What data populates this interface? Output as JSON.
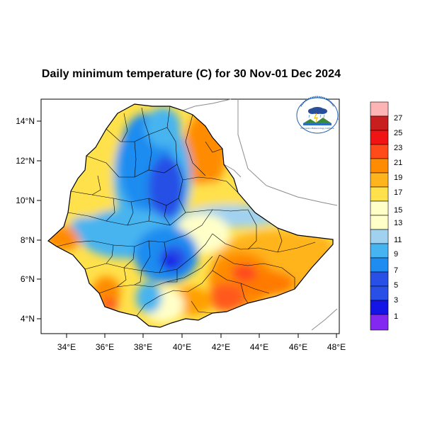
{
  "map": {
    "title": "Daily minimum temperature (C) for 30 Nov-01 Dec 2024",
    "x_ticks": [
      "34°E",
      "36°E",
      "38°E",
      "40°E",
      "42°E",
      "44°E",
      "46°E",
      "48°E"
    ],
    "y_ticks": [
      "14°N",
      "12°N",
      "10°N",
      "8°N",
      "6°N",
      "4°N"
    ],
    "region": "Ethiopia",
    "logo_caption": "Ethiopian Meteorology Institute"
  },
  "colorbar": {
    "labels": [
      "27",
      "25",
      "23",
      "21",
      "19",
      "17",
      "15",
      "13",
      "11",
      "9",
      "7",
      "5",
      "3",
      "1"
    ],
    "colors": [
      "#fcb4b4",
      "#c81e1e",
      "#f01414",
      "#ff4a1a",
      "#ff8c00",
      "#ffb41e",
      "#ffe14b",
      "#ffffc8",
      "#a0d2f0",
      "#46b4f0",
      "#1e8cf0",
      "#2850e6",
      "#1414e6",
      "#8228f0"
    ]
  },
  "palette": {
    "cold_core": "#1e46d2",
    "cool": "#4696f0",
    "mild": "#a0d2f0",
    "neutral": "#ffffc8",
    "warm": "#ffe14b",
    "hot": "#ffa000",
    "very_hot": "#ff5a1e"
  }
}
